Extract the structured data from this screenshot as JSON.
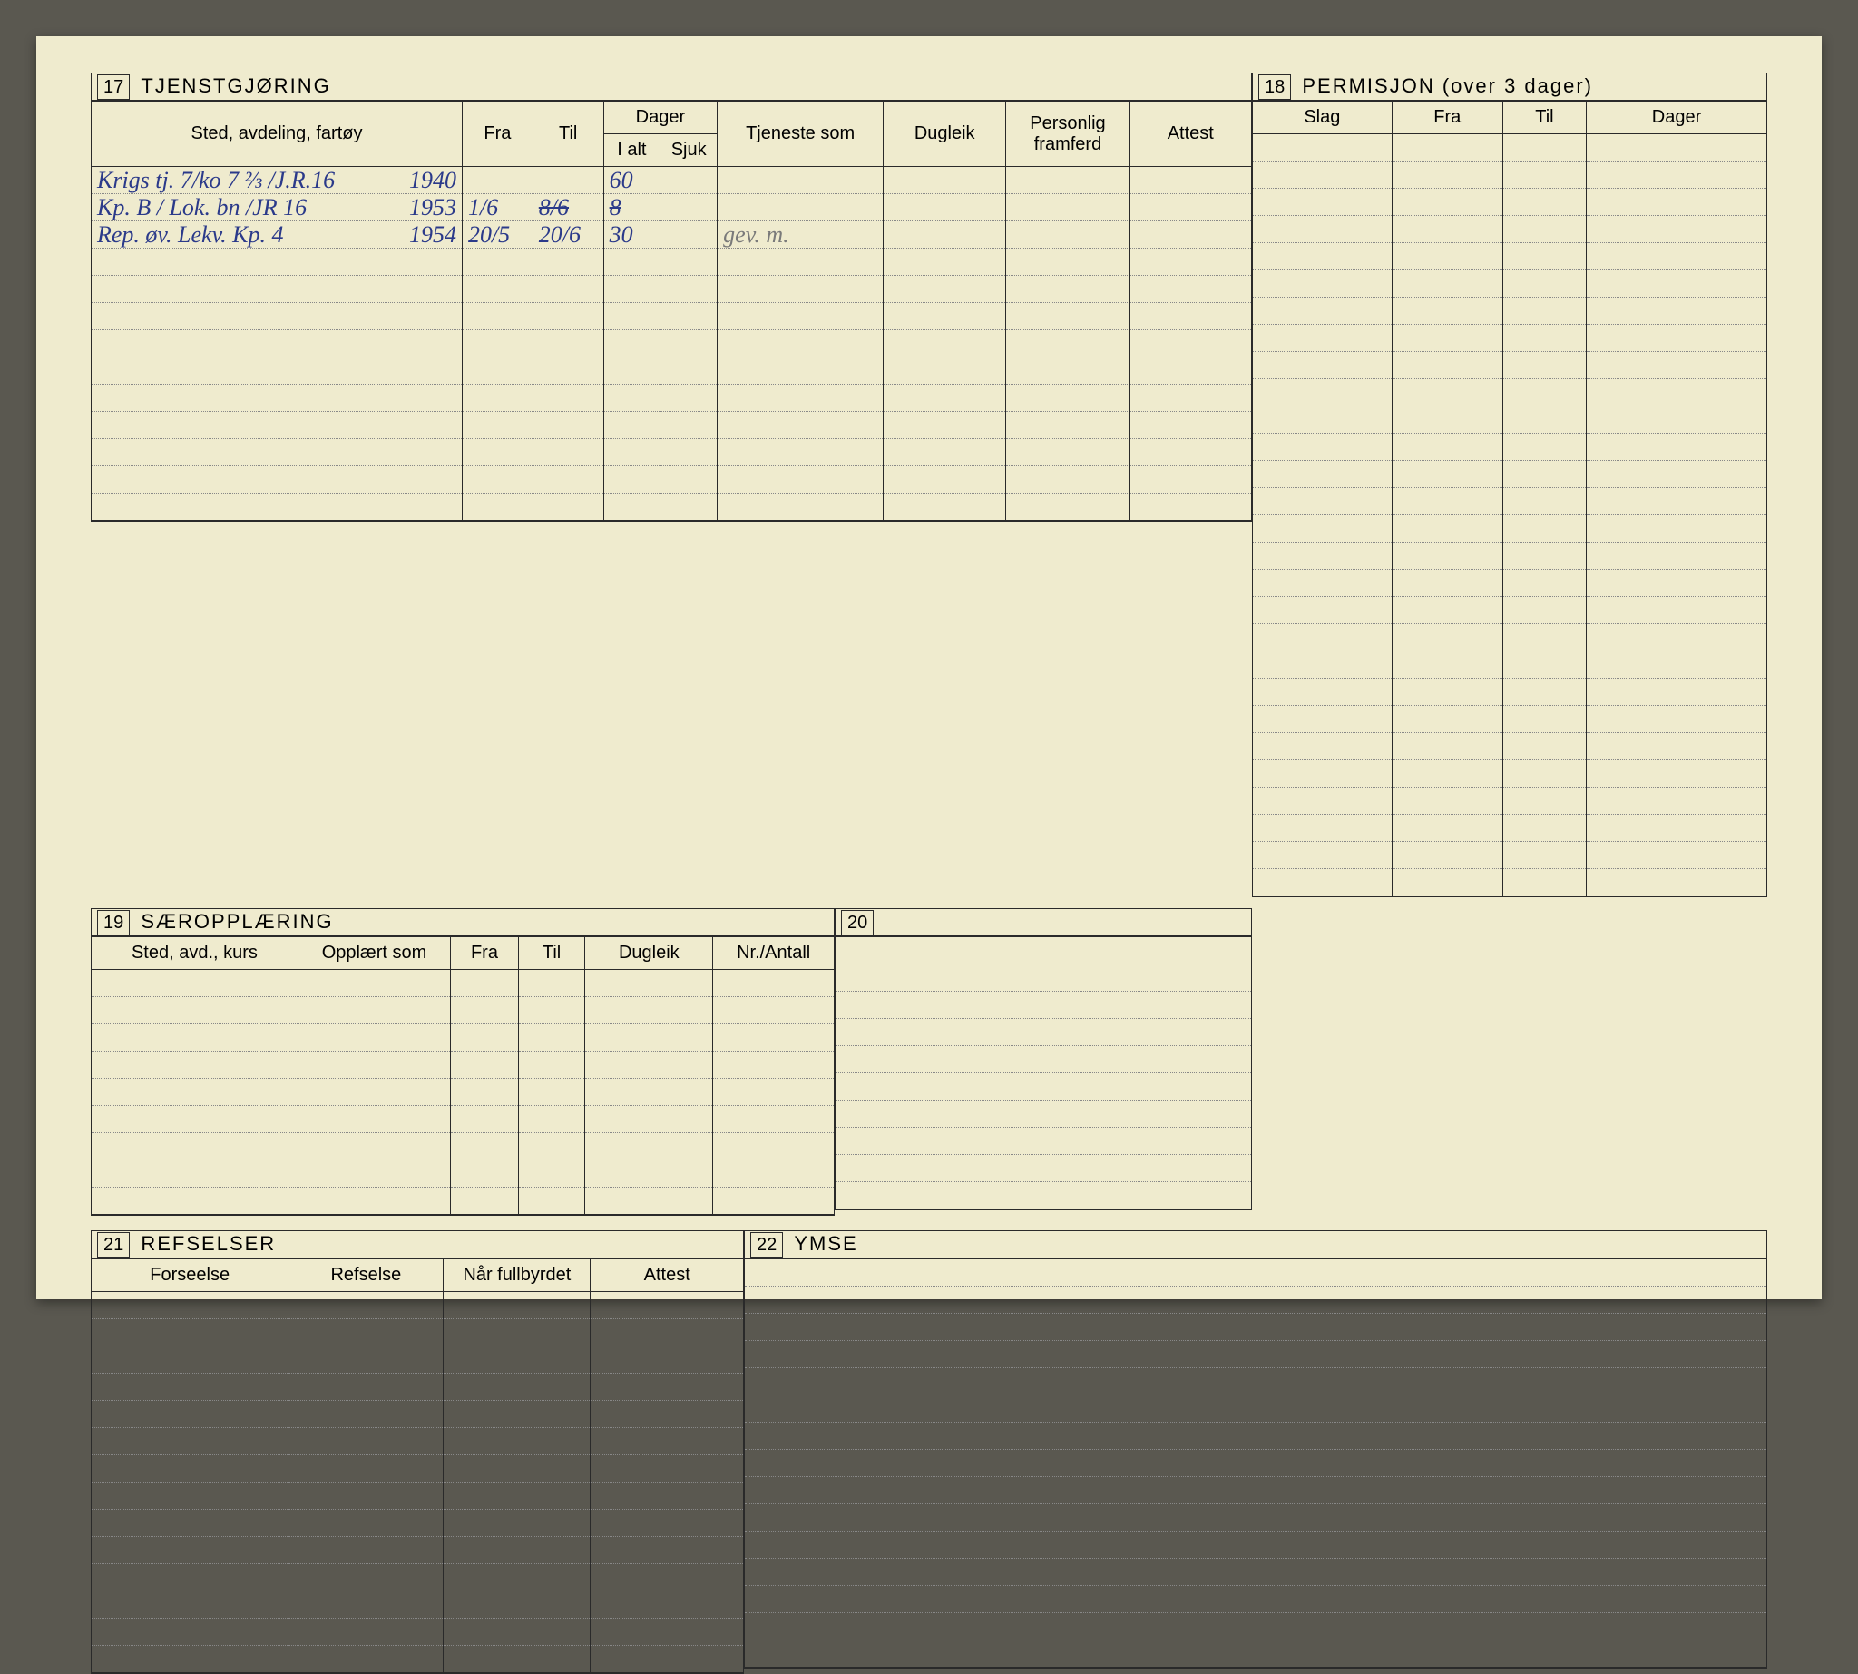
{
  "page": {
    "background_color": "#efebce",
    "outer_background": "#5a5850",
    "text_color": "#2a2a2a",
    "hand_blue": "#2b3a8a",
    "hand_gray": "#7a7a7a",
    "dotted_color": "#888888"
  },
  "sections": {
    "s17": {
      "num": "17",
      "title": "TJENSTGJØRING",
      "columns": {
        "sted": "Sted, avdeling, fartøy",
        "fra": "Fra",
        "til": "Til",
        "dager": "Dager",
        "ialt": "I alt",
        "sjuk": "Sjuk",
        "tjeneste": "Tjeneste som",
        "dugleik": "Dugleik",
        "personlig": "Personlig framferd",
        "attest": "Attest"
      },
      "rows": [
        {
          "sted": "Krigs tj. 7/ko 7 ⅔ /J.R.16",
          "year": "1940",
          "fra": "",
          "til": "",
          "ialt": "60",
          "sjuk": "",
          "tjeneste": ""
        },
        {
          "sted": "Kp. B / Lok. bn /JR 16",
          "year": "1953",
          "fra": "1/6",
          "til": "8/6",
          "ialt": "8",
          "sjuk": "",
          "tjeneste": "",
          "ialt_struck": true,
          "til_struck": true
        },
        {
          "sted": "Rep. øv. Lekv. Kp. 4",
          "year": "1954",
          "fra": "20/5",
          "til": "20/6",
          "ialt": "30",
          "sjuk": "",
          "tjeneste": "gev. m."
        }
      ],
      "blank_rows": 10
    },
    "s18": {
      "num": "18",
      "title": "PERMISJON (over 3 dager)",
      "columns": {
        "slag": "Slag",
        "fra": "Fra",
        "til": "Til",
        "dager": "Dager"
      },
      "blank_rows": 28
    },
    "s19": {
      "num": "19",
      "title": "SÆROPPLÆRING",
      "columns": {
        "sted": "Sted, avd., kurs",
        "opplart": "Opplært som",
        "fra": "Fra",
        "til": "Til",
        "dugleik": "Dugleik",
        "nr": "Nr./Antall"
      },
      "blank_rows": 9
    },
    "s20": {
      "num": "20",
      "blank_rows": 10
    },
    "s21": {
      "num": "21",
      "title": "REFSELSER",
      "columns": {
        "forseelse": "Forseelse",
        "refselse": "Refselse",
        "nar": "Når fullbyrdet",
        "attest": "Attest"
      },
      "blank_rows": 14
    },
    "s22": {
      "num": "22",
      "title": "YMSE",
      "blank_rows": 15
    }
  }
}
